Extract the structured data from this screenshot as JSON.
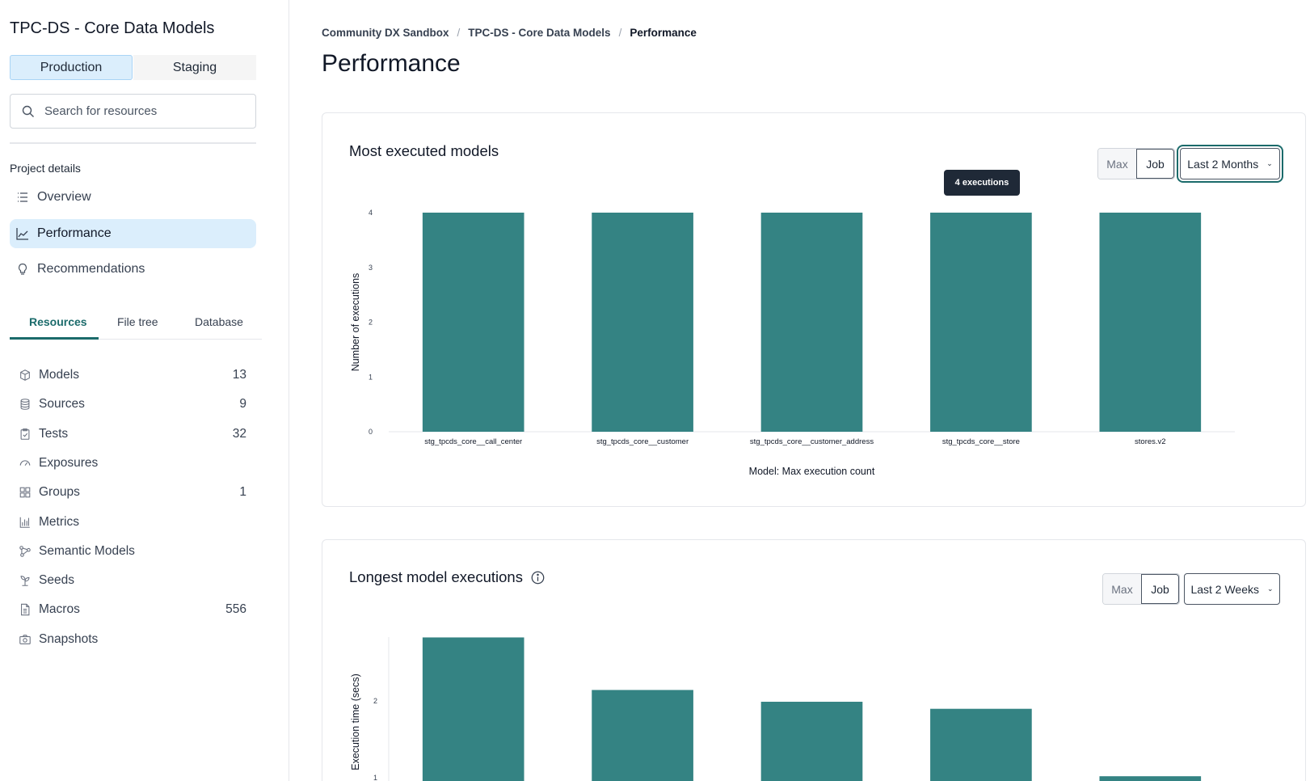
{
  "sidebar": {
    "project_title": "TPC-DS - Core Data Models",
    "environments": [
      "Production",
      "Staging"
    ],
    "active_environment": "Production",
    "search_placeholder": "Search for resources",
    "project_details_label": "Project details",
    "nav": [
      {
        "label": "Overview",
        "icon": "list-icon"
      },
      {
        "label": "Performance",
        "icon": "line-chart-icon",
        "selected": true
      },
      {
        "label": "Recommendations",
        "icon": "lightbulb-icon"
      }
    ],
    "resource_tabs": [
      "Resources",
      "File tree",
      "Database"
    ],
    "active_resource_tab": "Resources",
    "resources": [
      {
        "label": "Models",
        "count": "13",
        "icon": "cube-icon"
      },
      {
        "label": "Sources",
        "count": "9",
        "icon": "database-icon"
      },
      {
        "label": "Tests",
        "count": "32",
        "icon": "clipboard-check-icon"
      },
      {
        "label": "Exposures",
        "count": "",
        "icon": "gauge-icon"
      },
      {
        "label": "Groups",
        "count": "1",
        "icon": "grid-icon"
      },
      {
        "label": "Metrics",
        "count": "",
        "icon": "bar-chart-icon"
      },
      {
        "label": "Semantic Models",
        "count": "",
        "icon": "nodes-icon"
      },
      {
        "label": "Seeds",
        "count": "",
        "icon": "sprout-icon"
      },
      {
        "label": "Macros",
        "count": "556",
        "icon": "document-icon"
      },
      {
        "label": "Snapshots",
        "count": "",
        "icon": "camera-icon"
      }
    ]
  },
  "breadcrumb": [
    "Community DX Sandbox",
    "TPC-DS - Core Data Models",
    "Performance"
  ],
  "page_title": "Performance",
  "cards": [
    {
      "title": "Most executed models",
      "toggle": [
        "Max",
        "Job"
      ],
      "toggle_selected": "Job",
      "range": "Last 2 Months",
      "tooltip": "4 executions"
    },
    {
      "title": "Longest model executions",
      "toggle": [
        "Max",
        "Job"
      ],
      "toggle_selected": "Job",
      "range": "Last 2 Weeks"
    }
  ],
  "colors": {
    "bar": "#348383",
    "accent": "#1b6b6b",
    "selected_bg": "#dbeefc"
  },
  "chart_data": [
    {
      "type": "bar",
      "categories": [
        "stg_tpcds_core__call_center",
        "stg_tpcds_core__customer",
        "stg_tpcds_core__customer_address",
        "stg_tpcds_core__store",
        "stores.v2"
      ],
      "values": [
        4,
        4,
        4,
        4,
        4
      ],
      "xlabel": "Model: Max execution count",
      "ylabel": "Number of executions",
      "ylim": [
        0,
        4
      ],
      "yticks": [
        "0",
        "1",
        "2",
        "3",
        "4"
      ],
      "grid": false
    },
    {
      "type": "bar",
      "values": [
        2.81,
        2.14,
        1.99,
        1.9,
        1.04
      ],
      "ylabel": "Execution time (secs)",
      "yticks_visible": [
        "1",
        "2"
      ],
      "grid": false
    }
  ]
}
